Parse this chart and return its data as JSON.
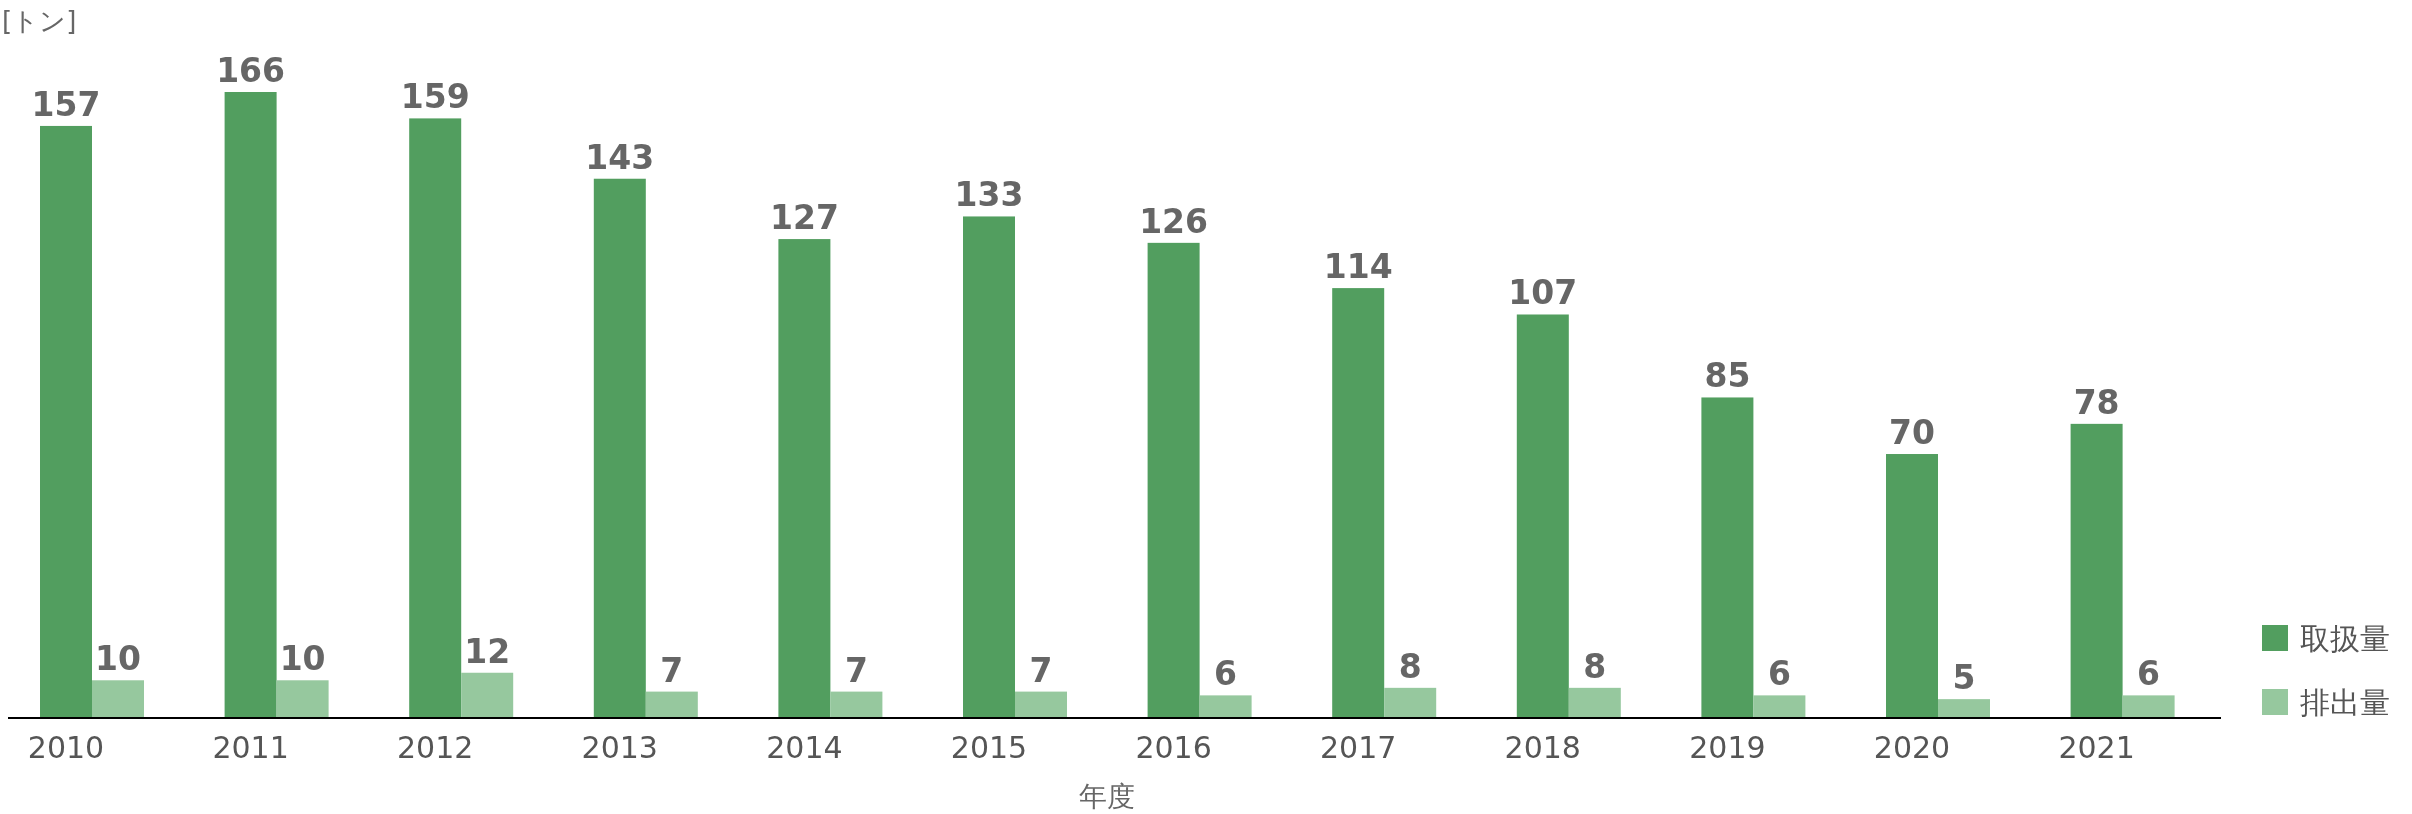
{
  "chart_data": {
    "type": "bar",
    "ylabel": "[トン]",
    "xlabel": "年度",
    "categories": [
      "2010",
      "2011",
      "2012",
      "2013",
      "2014",
      "2015",
      "2016",
      "2017",
      "2018",
      "2019",
      "2020",
      "2021"
    ],
    "series": [
      {
        "name": "取扱量",
        "color": "#529e5f",
        "values": [
          157,
          166,
          159,
          143,
          127,
          133,
          126,
          114,
          107,
          85,
          70,
          78
        ]
      },
      {
        "name": "排出量",
        "color": "#96c89e",
        "values": [
          10,
          10,
          12,
          7,
          7,
          7,
          6,
          8,
          8,
          6,
          5,
          6
        ]
      }
    ],
    "data_labels": true,
    "legend": "right"
  }
}
